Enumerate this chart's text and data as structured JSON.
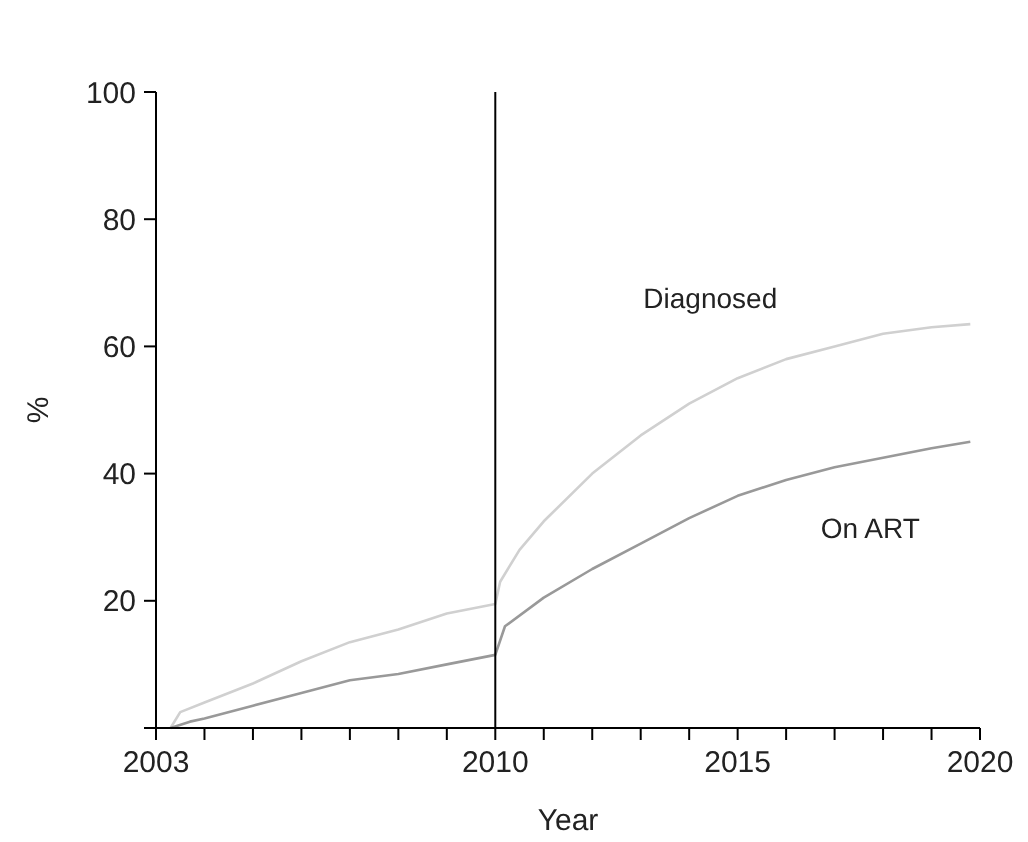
{
  "chart_data": {
    "type": "line",
    "xlabel": "Year",
    "ylabel": "%",
    "xlim": [
      2003,
      2020
    ],
    "ylim": [
      0,
      100
    ],
    "xticks": [
      2003,
      {
        "value": 2004,
        "label": null
      },
      {
        "value": 2005,
        "label": null
      },
      {
        "value": 2006,
        "label": null
      },
      {
        "value": 2007,
        "label": null
      },
      {
        "value": 2008,
        "label": null
      },
      {
        "value": 2009,
        "label": null
      },
      2010,
      {
        "value": 2011,
        "label": null
      },
      {
        "value": 2012,
        "label": null
      },
      {
        "value": 2013,
        "label": null
      },
      {
        "value": 2014,
        "label": null
      },
      2015,
      {
        "value": 2016,
        "label": null
      },
      {
        "value": 2017,
        "label": null
      },
      {
        "value": 2018,
        "label": null
      },
      {
        "value": 2019,
        "label": null
      },
      2020
    ],
    "yticks": [
      {
        "value": 0,
        "label": null
      },
      20,
      40,
      60,
      80,
      100
    ],
    "grid": false,
    "marker": "none",
    "line_style": "solid",
    "ref_lines": [
      {
        "axis": "x",
        "value": 2010,
        "color": "#000000"
      }
    ],
    "series": [
      {
        "name": "Diagnosed",
        "color": "#d0d0d0",
        "x": [
          2003.3,
          2003.5,
          2004,
          2005,
          2006,
          2007,
          2008,
          2009,
          2010,
          2010.1,
          2010.5,
          2011,
          2012,
          2013,
          2014,
          2015,
          2016,
          2017,
          2018,
          2019,
          2019.8
        ],
        "values": [
          0,
          2.5,
          4,
          7,
          10.5,
          13.5,
          15.5,
          18,
          19.5,
          23,
          28,
          32.5,
          40,
          46,
          51,
          55,
          58,
          60,
          62,
          63,
          63.5
        ]
      },
      {
        "name": "On ART",
        "color": "#999999",
        "x": [
          2003.3,
          2003.7,
          2004,
          2005,
          2006,
          2007,
          2008,
          2009,
          2010,
          2010.2,
          2011,
          2012,
          2013,
          2014,
          2015,
          2016,
          2017,
          2018,
          2019,
          2019.8
        ],
        "values": [
          0,
          1,
          1.5,
          3.5,
          5.5,
          7.5,
          8.5,
          10,
          11.5,
          16,
          20.5,
          25,
          29,
          33,
          36.5,
          39,
          41,
          42.5,
          44,
          45
        ]
      }
    ]
  }
}
